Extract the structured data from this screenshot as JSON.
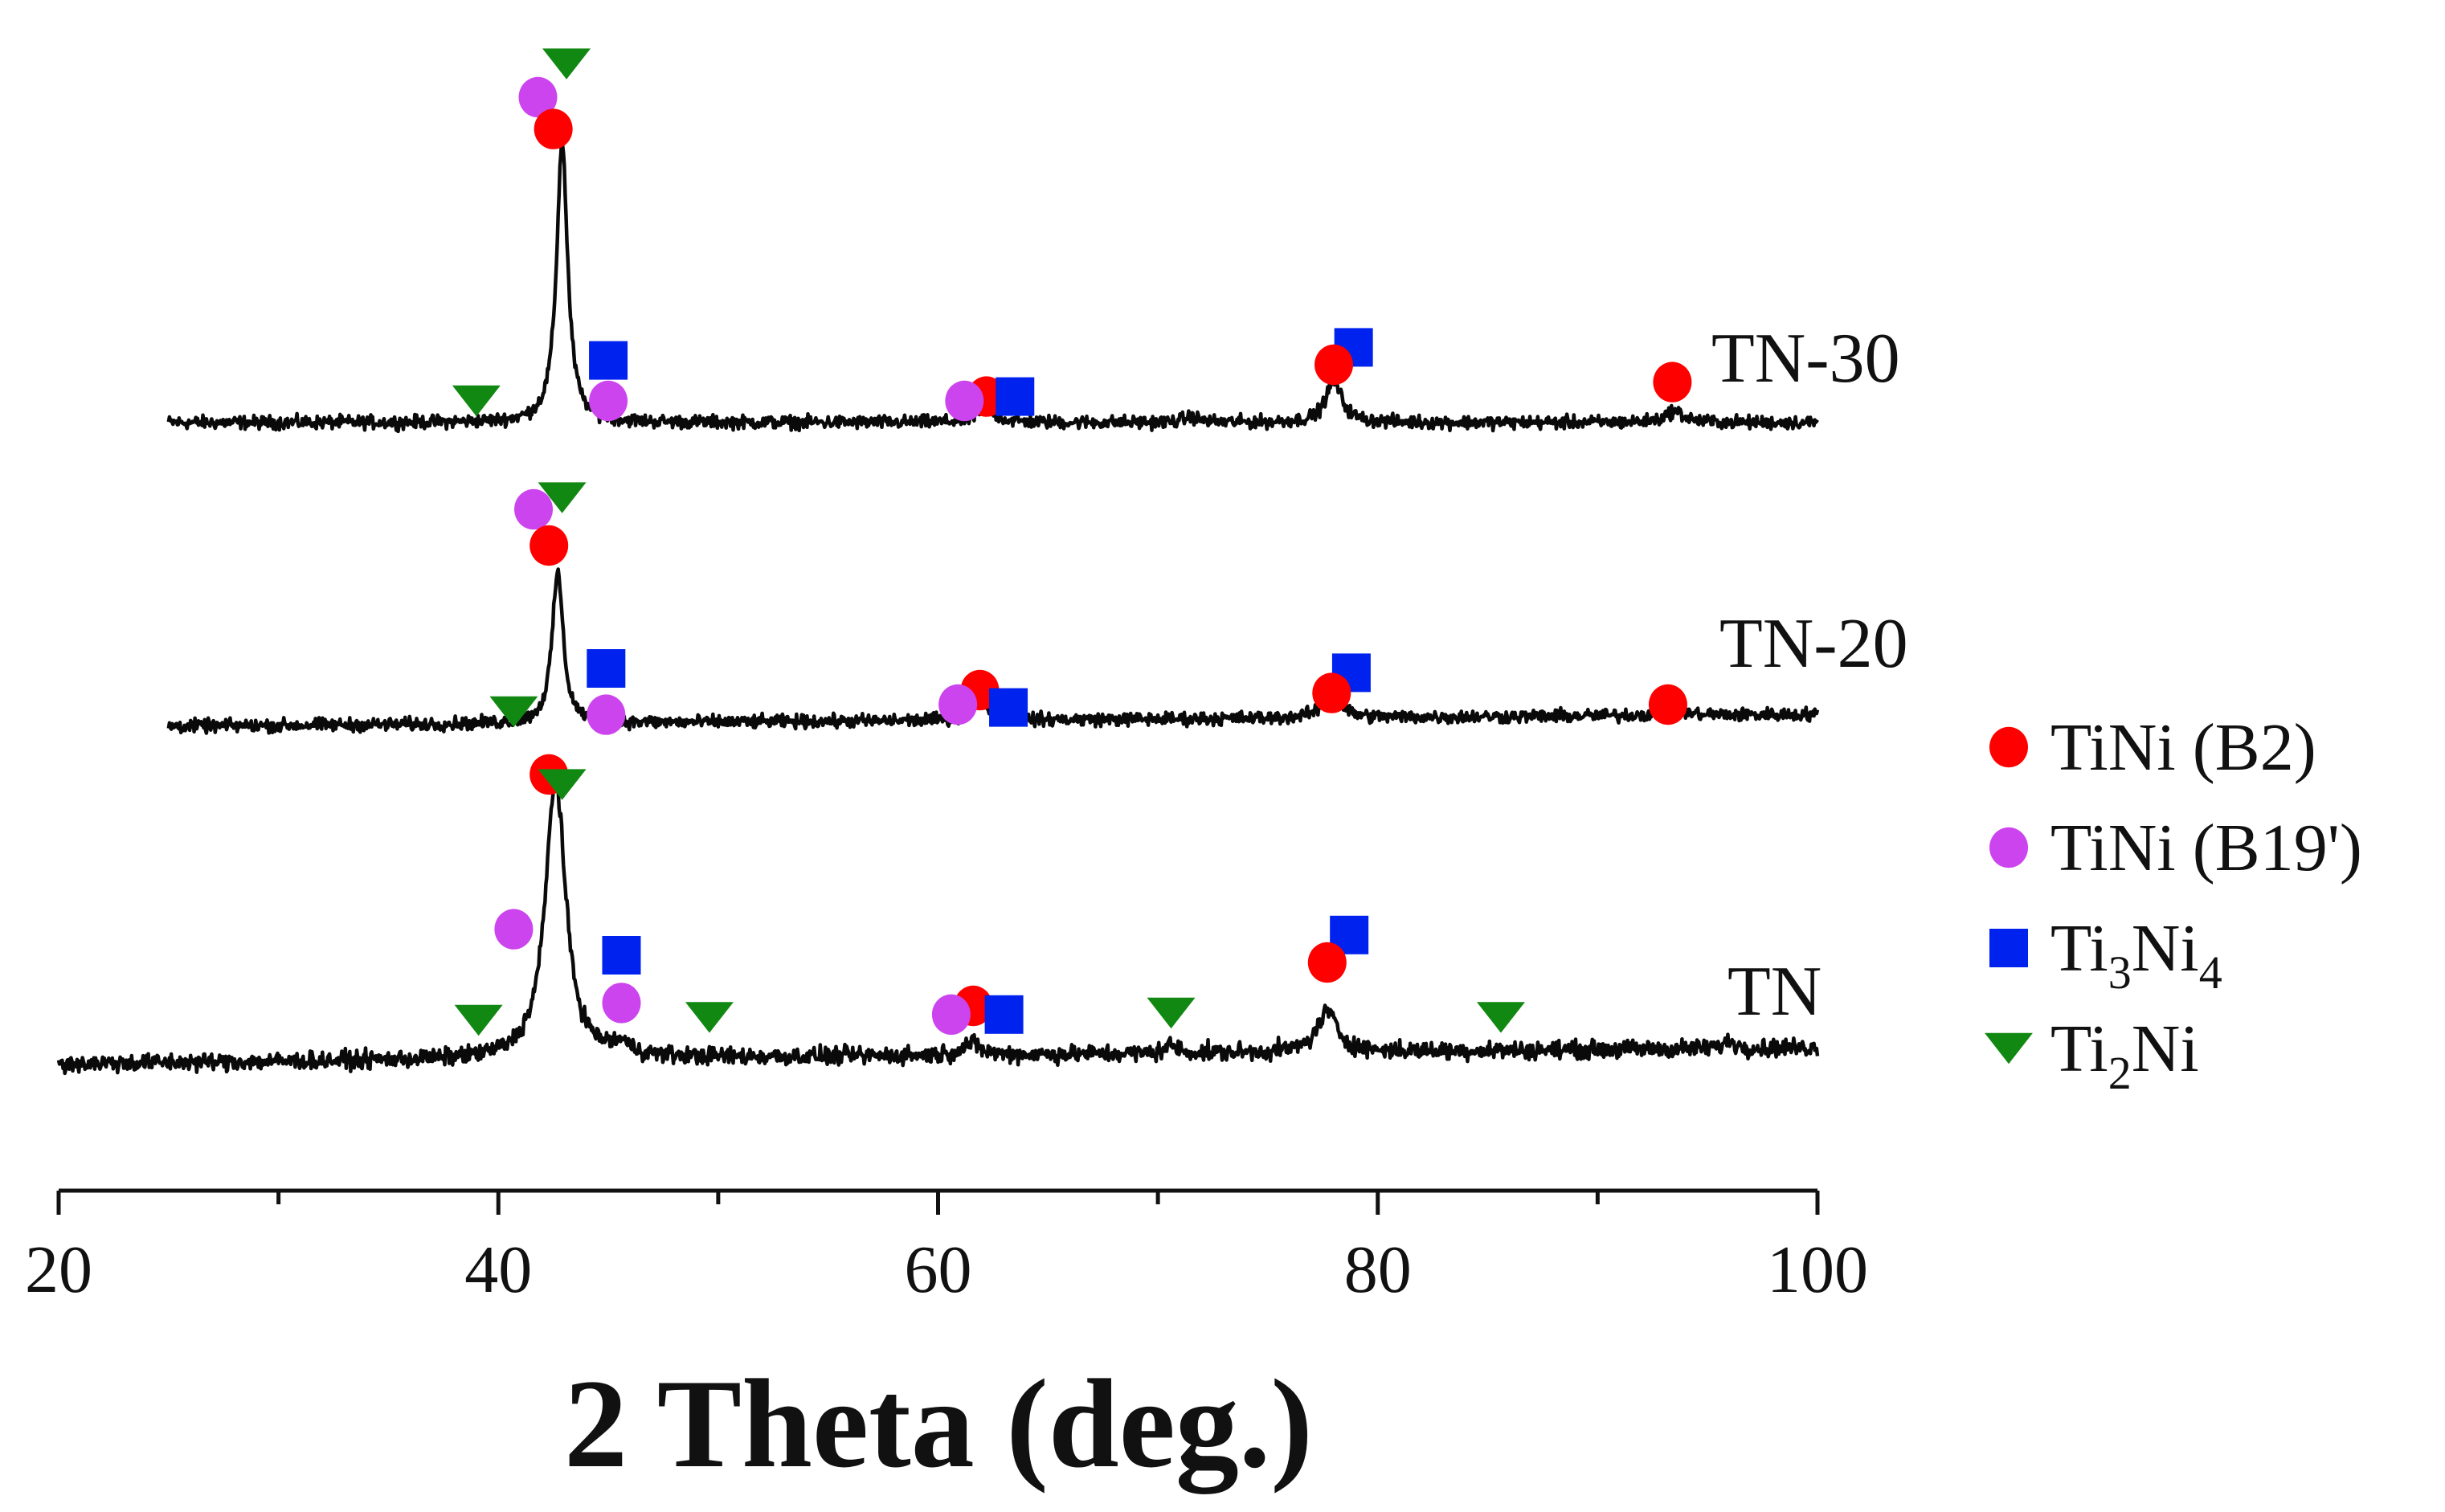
{
  "chart_data": {
    "type": "line",
    "title": "",
    "xlabel": "2 Theta (deg.)",
    "ylabel": "",
    "xlim": [
      20,
      100
    ],
    "xticks": [
      20,
      40,
      60,
      80,
      100
    ],
    "y_axis_visible": false,
    "legend_position": "right",
    "phases": [
      {
        "key": "b2",
        "label": "TiNi (B2)",
        "marker": "circle",
        "color": "#ff0000"
      },
      {
        "key": "b19",
        "label": "TiNi (B19')",
        "marker": "circle",
        "color": "#cc44ee"
      },
      {
        "key": "ti3ni4",
        "label_parts": [
          {
            "t": "Ti"
          },
          {
            "t": "3",
            "sub": true
          },
          {
            "t": "Ni"
          },
          {
            "t": "4",
            "sub": true
          }
        ],
        "marker": "square",
        "color": "#0022ee"
      },
      {
        "key": "ti2ni",
        "label_parts": [
          {
            "t": "Ti"
          },
          {
            "t": "2",
            "sub": true
          },
          {
            "t": "Ni"
          }
        ],
        "marker": "triangle-down",
        "color": "#118811"
      }
    ],
    "series": [
      {
        "name": "TN-30",
        "x_range": [
          25,
          100
        ],
        "baseline": 0.2,
        "baseline_slope": 0.0,
        "noise": 0.045,
        "peaks": [
          {
            "x": 42.9,
            "height": 1.95,
            "width": 0.3
          },
          {
            "x": 62.2,
            "height": 0.09,
            "width": 0.5
          },
          {
            "x": 71.5,
            "height": 0.04,
            "width": 0.4
          },
          {
            "x": 78.0,
            "height": 0.28,
            "width": 0.45
          },
          {
            "x": 93.5,
            "height": 0.08,
            "width": 0.5
          }
        ],
        "markers": [
          {
            "x": 43.1,
            "phase": "ti2ni",
            "level": 2.68
          },
          {
            "x": 41.8,
            "phase": "b19",
            "level": 2.45
          },
          {
            "x": 42.5,
            "phase": "b2",
            "level": 2.23
          },
          {
            "x": 45.0,
            "phase": "ti3ni4",
            "level": 0.63
          },
          {
            "x": 45.0,
            "phase": "b19",
            "level": 0.35
          },
          {
            "x": 39.0,
            "phase": "ti2ni",
            "level": 0.35
          },
          {
            "x": 62.2,
            "phase": "b2",
            "level": 0.38
          },
          {
            "x": 61.2,
            "phase": "b19",
            "level": 0.35
          },
          {
            "x": 63.5,
            "phase": "ti3ni4",
            "level": 0.38
          },
          {
            "x": 78.9,
            "phase": "ti3ni4",
            "level": 0.72
          },
          {
            "x": 78.0,
            "phase": "b2",
            "level": 0.6
          },
          {
            "x": 93.4,
            "phase": "b2",
            "level": 0.48
          }
        ]
      },
      {
        "name": "TN-20",
        "x_range": [
          25,
          100
        ],
        "baseline": 0.1,
        "baseline_slope": 0.0011,
        "noise": 0.045,
        "peaks": [
          {
            "x": 42.7,
            "height": 1.05,
            "width": 0.3
          },
          {
            "x": 61.9,
            "height": 0.17,
            "width": 0.45
          },
          {
            "x": 77.9,
            "height": 0.18,
            "width": 0.45
          },
          {
            "x": 93.3,
            "height": 0.06,
            "width": 0.5
          }
        ],
        "markers": [
          {
            "x": 42.9,
            "phase": "ti2ni",
            "level": 1.68
          },
          {
            "x": 41.6,
            "phase": "b19",
            "level": 1.6
          },
          {
            "x": 42.3,
            "phase": "b2",
            "level": 1.35
          },
          {
            "x": 44.9,
            "phase": "ti3ni4",
            "level": 0.5
          },
          {
            "x": 44.9,
            "phase": "b19",
            "level": 0.18
          },
          {
            "x": 40.7,
            "phase": "ti2ni",
            "level": 0.2
          },
          {
            "x": 61.9,
            "phase": "b2",
            "level": 0.35
          },
          {
            "x": 60.9,
            "phase": "b19",
            "level": 0.25
          },
          {
            "x": 63.2,
            "phase": "ti3ni4",
            "level": 0.23
          },
          {
            "x": 78.8,
            "phase": "ti3ni4",
            "level": 0.47
          },
          {
            "x": 77.9,
            "phase": "b2",
            "level": 0.33
          },
          {
            "x": 93.2,
            "phase": "b2",
            "level": 0.25
          }
        ]
      },
      {
        "name": "TN",
        "x_range": [
          20,
          100
        ],
        "baseline": 0.1,
        "baseline_slope": 0.0014,
        "noise": 0.06,
        "peaks": [
          {
            "x": 42.6,
            "height": 1.95,
            "width": 0.55
          },
          {
            "x": 45.6,
            "height": 0.07,
            "width": 0.5
          },
          {
            "x": 61.5,
            "height": 0.08,
            "width": 0.5
          },
          {
            "x": 70.6,
            "height": 0.06,
            "width": 0.3
          },
          {
            "x": 77.7,
            "height": 0.28,
            "width": 0.55
          },
          {
            "x": 96.0,
            "height": 0.05,
            "width": 0.3
          }
        ],
        "markers": [
          {
            "x": 42.3,
            "phase": "b2",
            "level": 2.1
          },
          {
            "x": 42.9,
            "phase": "ti2ni",
            "level": 2.03
          },
          {
            "x": 40.7,
            "phase": "b19",
            "level": 1.03
          },
          {
            "x": 45.6,
            "phase": "ti3ni4",
            "level": 0.85
          },
          {
            "x": 45.6,
            "phase": "b19",
            "level": 0.52
          },
          {
            "x": 39.1,
            "phase": "ti2ni",
            "level": 0.4
          },
          {
            "x": 49.6,
            "phase": "ti2ni",
            "level": 0.42
          },
          {
            "x": 61.6,
            "phase": "b2",
            "level": 0.5
          },
          {
            "x": 60.6,
            "phase": "b19",
            "level": 0.44
          },
          {
            "x": 63.0,
            "phase": "ti3ni4",
            "level": 0.44
          },
          {
            "x": 70.6,
            "phase": "ti2ni",
            "level": 0.45
          },
          {
            "x": 78.7,
            "phase": "ti3ni4",
            "level": 0.99
          },
          {
            "x": 77.7,
            "phase": "b2",
            "level": 0.8
          },
          {
            "x": 85.6,
            "phase": "ti2ni",
            "level": 0.42
          }
        ]
      }
    ]
  }
}
